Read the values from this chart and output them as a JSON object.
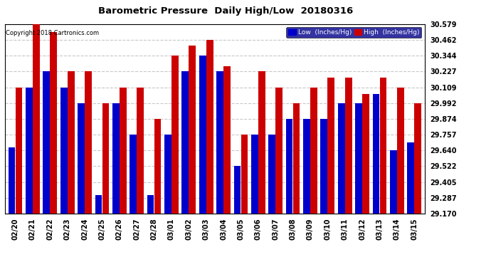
{
  "title": "Barometric Pressure  Daily High/Low  20180316",
  "copyright": "Copyright 2018 Cartronics.com",
  "ylabel_right_ticks": [
    29.17,
    29.287,
    29.405,
    29.522,
    29.64,
    29.757,
    29.874,
    29.992,
    30.109,
    30.227,
    30.344,
    30.462,
    30.579
  ],
  "dates": [
    "02/20",
    "02/21",
    "02/22",
    "02/23",
    "02/24",
    "02/25",
    "02/26",
    "02/27",
    "02/28",
    "03/01",
    "03/02",
    "03/03",
    "03/04",
    "03/05",
    "03/06",
    "03/07",
    "03/08",
    "03/09",
    "03/10",
    "03/11",
    "03/12",
    "03/13",
    "03/14",
    "03/15"
  ],
  "low_values": [
    29.66,
    30.109,
    30.227,
    30.109,
    29.992,
    29.31,
    29.992,
    29.757,
    29.31,
    29.757,
    30.227,
    30.344,
    30.227,
    29.522,
    29.757,
    29.757,
    29.874,
    29.874,
    29.874,
    29.992,
    29.992,
    30.06,
    29.64,
    29.7
  ],
  "high_values": [
    30.109,
    30.579,
    30.52,
    30.227,
    30.227,
    29.992,
    30.109,
    30.109,
    29.874,
    30.344,
    30.42,
    30.462,
    30.265,
    29.757,
    30.227,
    30.109,
    29.992,
    30.109,
    30.18,
    30.18,
    30.06,
    30.18,
    30.109,
    29.992
  ],
  "low_color": "#0000cc",
  "high_color": "#cc0000",
  "bg_color": "#ffffff",
  "grid_color": "#c8c8c8",
  "ylim_min": 29.17,
  "ylim_max": 30.579
}
